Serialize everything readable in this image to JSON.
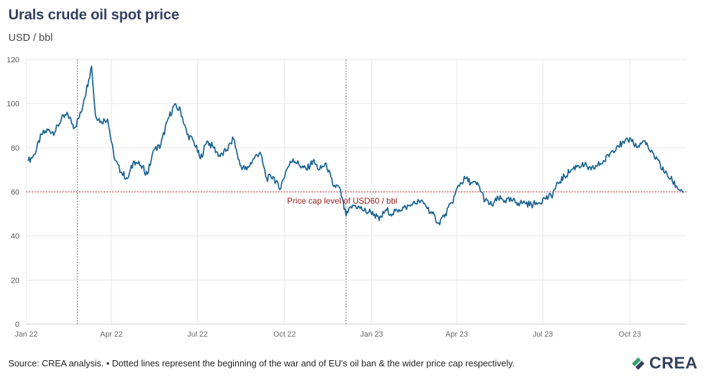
{
  "header": {
    "title": "Urals crude oil spot price",
    "subtitle": "USD / bbl"
  },
  "footer": {
    "source": "Source: CREA analysis. • Dotted lines represent the beginning of the war and of EU's oil ban & the wider price cap respectively.",
    "logo_text": "CREA"
  },
  "colors": {
    "line": "#1b6592",
    "cap_line": "#b22222",
    "annotation": "#9b1b1b",
    "grid": "#e6e6e6",
    "event_line": "#999999",
    "logo_green": "#3aa06b",
    "logo_navy": "#35405f"
  },
  "chart_data": {
    "type": "line",
    "title": "Urals crude oil spot price",
    "ylabel": "USD / bbl",
    "xlabel": "",
    "ylim": [
      0,
      120
    ],
    "xlim": [
      "2022-01-01",
      "2023-11-30"
    ],
    "yticks": [
      0,
      20,
      40,
      60,
      80,
      100,
      120
    ],
    "xticks": [
      {
        "date": "2022-01-01",
        "label": "Jan 22"
      },
      {
        "date": "2022-04-01",
        "label": "Apr 22"
      },
      {
        "date": "2022-07-01",
        "label": "Jul 22"
      },
      {
        "date": "2022-10-01",
        "label": "Oct 22"
      },
      {
        "date": "2023-01-01",
        "label": "Jan 23"
      },
      {
        "date": "2023-04-01",
        "label": "Apr 23"
      },
      {
        "date": "2023-07-01",
        "label": "Jul 23"
      },
      {
        "date": "2023-10-01",
        "label": "Oct 23"
      }
    ],
    "grid": true,
    "reference_lines": [
      {
        "axis": "y",
        "value": 60,
        "label": "Price cap level of USD60 / bbl",
        "label_date": "2022-12-01"
      }
    ],
    "event_lines": [
      {
        "date": "2022-02-24"
      },
      {
        "date": "2022-12-05"
      }
    ],
    "series": [
      {
        "x": [
          "2022-01-03",
          "2022-01-10",
          "2022-01-17",
          "2022-01-24",
          "2022-01-31",
          "2022-02-07",
          "2022-02-14",
          "2022-02-21",
          "2022-02-28",
          "2022-03-03",
          "2022-03-08",
          "2022-03-11",
          "2022-03-15",
          "2022-03-21",
          "2022-03-28",
          "2022-04-04",
          "2022-04-11",
          "2022-04-18",
          "2022-04-25",
          "2022-05-02",
          "2022-05-09",
          "2022-05-16",
          "2022-05-23",
          "2022-05-30",
          "2022-06-06",
          "2022-06-13",
          "2022-06-20",
          "2022-06-27",
          "2022-07-04",
          "2022-07-11",
          "2022-07-18",
          "2022-07-25",
          "2022-08-01",
          "2022-08-08",
          "2022-08-15",
          "2022-08-22",
          "2022-08-29",
          "2022-09-05",
          "2022-09-12",
          "2022-09-19",
          "2022-09-26",
          "2022-10-03",
          "2022-10-10",
          "2022-10-17",
          "2022-10-24",
          "2022-10-31",
          "2022-11-07",
          "2022-11-14",
          "2022-11-21",
          "2022-11-28",
          "2022-12-05",
          "2022-12-12",
          "2022-12-19",
          "2022-12-26",
          "2023-01-02",
          "2023-01-09",
          "2023-01-16",
          "2023-01-23",
          "2023-01-30",
          "2023-02-06",
          "2023-02-13",
          "2023-02-20",
          "2023-02-27",
          "2023-03-06",
          "2023-03-13",
          "2023-03-20",
          "2023-03-27",
          "2023-04-03",
          "2023-04-10",
          "2023-04-17",
          "2023-04-24",
          "2023-05-01",
          "2023-05-08",
          "2023-05-15",
          "2023-05-22",
          "2023-05-29",
          "2023-06-05",
          "2023-06-12",
          "2023-06-19",
          "2023-06-26",
          "2023-07-03",
          "2023-07-10",
          "2023-07-17",
          "2023-07-24",
          "2023-07-31",
          "2023-08-07",
          "2023-08-14",
          "2023-08-21",
          "2023-08-28",
          "2023-09-04",
          "2023-09-11",
          "2023-09-18",
          "2023-09-25",
          "2023-10-02",
          "2023-10-09",
          "2023-10-16",
          "2023-10-23",
          "2023-10-30",
          "2023-11-06",
          "2023-11-13",
          "2023-11-20",
          "2023-11-27"
        ],
        "values": [
          74,
          77,
          86,
          88,
          87,
          93,
          95,
          89,
          96,
          102,
          111,
          117,
          95,
          92,
          93,
          75,
          69,
          66,
          74,
          72,
          68,
          79,
          81,
          92,
          99,
          97,
          86,
          83,
          75,
          83,
          80,
          76,
          79,
          84,
          72,
          70,
          75,
          78,
          66,
          67,
          61,
          70,
          75,
          72,
          70,
          74,
          70,
          73,
          63,
          62,
          49,
          54,
          53,
          51,
          51,
          47,
          52,
          50,
          52,
          53,
          54,
          56,
          54,
          50,
          46,
          50,
          55,
          63,
          66,
          64,
          63,
          56,
          54,
          57,
          56,
          56,
          55,
          55,
          54,
          55,
          57,
          58,
          64,
          67,
          70,
          72,
          72,
          70,
          72,
          74,
          78,
          81,
          82,
          84,
          80,
          83,
          78,
          75,
          69,
          66,
          62,
          60
        ]
      }
    ]
  }
}
